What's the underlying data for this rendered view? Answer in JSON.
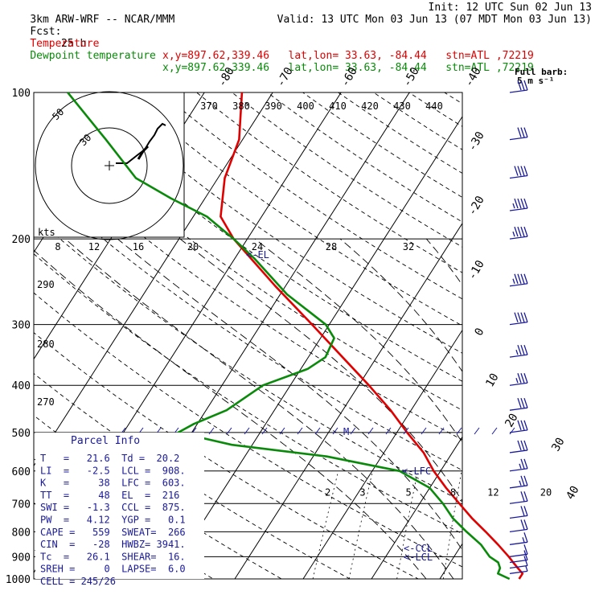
{
  "header": {
    "model": "3km ARW-WRF -- NCAR/MMM",
    "init": "Init: 12 UTC Sun 02 Jun 13",
    "fcst_label": "Fcst:",
    "fcst_value": "25 h",
    "valid": "Valid: 13 UTC Mon 03 Jun 13 (07 MDT Mon 03 Jun 13)",
    "temp_label": "Temperature",
    "temp_info": "x,y=897.62,339.46   lat,lon= 33.63, -84.44   stn=ATL ,72219",
    "dew_label": "Dewpoint temperature",
    "dew_info": "x,y=897.62,339.46   lat,lon= 33.63, -84.44   stn=ATL ,72219"
  },
  "wind_legend": {
    "line1": "Full barb:",
    "line2": "5 m s⁻¹"
  },
  "parcel": {
    "title": "Parcel Info",
    "lines": [
      "T   =   21.6  Td =  20.2",
      "LI  =   -2.5  LCL =  908.",
      "K   =     38  LFC =  603.",
      "TT  =     48  EL  =  216",
      "SWI =   -1.3  CCL =  875.",
      "PW  =   4.12  YGP =   0.1",
      "CAPE =   559  SWEAT=  266",
      "CIN  =   -28  HWBZ= 3941.",
      "Tc  =   26.1  SHEAR=  16.",
      "SREH =     0  LAPSE=  6.0",
      "CELL = 245/26"
    ]
  },
  "hodograph": {
    "unit_label": "kts",
    "ring_labels": [
      "50",
      "30"
    ]
  },
  "annotations": {
    "el": "<-EL",
    "lfc": "<-LFC",
    "ccl": "<-CCL",
    "lcl": "<-LCL",
    "m": "M"
  },
  "colors": {
    "temperature": "#e00000",
    "dewpoint": "#0a8a0a",
    "wind": "#1a1a9a",
    "grid": "#000000"
  },
  "chart_data": {
    "type": "line",
    "chart_kind": "skew-T log-P",
    "y_axis": "pressure (hPa)",
    "y_scale": "log",
    "ylim": [
      1000,
      100
    ],
    "pressure_levels": [
      100,
      200,
      300,
      400,
      500,
      600,
      700,
      800,
      900,
      1000
    ],
    "isotherm_labels": [
      {
        "t": -80,
        "label": "-80"
      },
      {
        "t": -70,
        "label": "-70"
      },
      {
        "t": -60,
        "label": "-60"
      },
      {
        "t": -50,
        "label": "-50"
      },
      {
        "t": -40,
        "label": "-40"
      },
      {
        "t": -30,
        "label": "-30"
      },
      {
        "t": -20,
        "label": "-20"
      },
      {
        "t": -10,
        "label": "-10"
      },
      {
        "t": 0,
        "label": "0"
      },
      {
        "t": 10,
        "label": "10"
      },
      {
        "t": 20,
        "label": "20"
      },
      {
        "t": 30,
        "label": "30"
      },
      {
        "t": 40,
        "label": "40"
      }
    ],
    "theta_labels": [
      "370",
      "380",
      "390",
      "400",
      "410",
      "420",
      "430",
      "440"
    ],
    "theta_left_labels": [
      "290",
      "280",
      "270"
    ],
    "hodo_speed_labels": [
      "8",
      "12",
      "16",
      "20",
      "24",
      "28",
      "32"
    ],
    "mixing_ratio_labels": [
      "2",
      "3",
      "5",
      "8",
      "12",
      "20"
    ],
    "series": [
      {
        "name": "Temperature",
        "points": [
          {
            "p": 1000,
            "t": 21.6
          },
          {
            "p": 975,
            "t": 21.6
          },
          {
            "p": 950,
            "t": 20.4
          },
          {
            "p": 925,
            "t": 19.2
          },
          {
            "p": 900,
            "t": 18.0
          },
          {
            "p": 850,
            "t": 15.3
          },
          {
            "p": 800,
            "t": 12.3
          },
          {
            "p": 750,
            "t": 9.0
          },
          {
            "p": 700,
            "t": 5.8
          },
          {
            "p": 650,
            "t": 2.4
          },
          {
            "p": 600,
            "t": -1.0
          },
          {
            "p": 550,
            "t": -4.2
          },
          {
            "p": 500,
            "t": -8.5
          },
          {
            "p": 450,
            "t": -13.0
          },
          {
            "p": 400,
            "t": -18.5
          },
          {
            "p": 350,
            "t": -25.0
          },
          {
            "p": 300,
            "t": -32.5
          },
          {
            "p": 250,
            "t": -41.5
          },
          {
            "p": 200,
            "t": -52.0
          },
          {
            "p": 180,
            "t": -56.0
          },
          {
            "p": 150,
            "t": -59.0
          },
          {
            "p": 125,
            "t": -60.5
          },
          {
            "p": 100,
            "t": -64.5
          }
        ]
      },
      {
        "name": "Dewpoint temperature",
        "points": [
          {
            "p": 1000,
            "t": 20.2
          },
          {
            "p": 975,
            "t": 18.0
          },
          {
            "p": 950,
            "t": 17.8
          },
          {
            "p": 925,
            "t": 17.0
          },
          {
            "p": 900,
            "t": 15.2
          },
          {
            "p": 850,
            "t": 12.8
          },
          {
            "p": 800,
            "t": 9.5
          },
          {
            "p": 750,
            "t": 6.2
          },
          {
            "p": 700,
            "t": 3.4
          },
          {
            "p": 650,
            "t": 0.0
          },
          {
            "p": 600,
            "t": -6.0
          },
          {
            "p": 560,
            "t": -18.0
          },
          {
            "p": 530,
            "t": -33.0
          },
          {
            "p": 500,
            "t": -42.0
          },
          {
            "p": 480,
            "t": -40.5
          },
          {
            "p": 450,
            "t": -37.0
          },
          {
            "p": 400,
            "t": -34.0
          },
          {
            "p": 370,
            "t": -29.0
          },
          {
            "p": 350,
            "t": -27.5
          },
          {
            "p": 320,
            "t": -28.0
          },
          {
            "p": 300,
            "t": -30.5
          },
          {
            "p": 260,
            "t": -39.0
          },
          {
            "p": 220,
            "t": -47.0
          },
          {
            "p": 200,
            "t": -52.0
          },
          {
            "p": 180,
            "t": -58.0
          },
          {
            "p": 165,
            "t": -65.0
          },
          {
            "p": 150,
            "t": -72.0
          },
          {
            "p": 125,
            "t": -80.0
          },
          {
            "p": 100,
            "t": -90.0
          }
        ]
      }
    ],
    "wind_barbs": [
      {
        "p": 975,
        "dir": 220,
        "spd_kt": 8
      },
      {
        "p": 950,
        "dir": 225,
        "spd_kt": 10
      },
      {
        "p": 925,
        "dir": 225,
        "spd_kt": 12
      },
      {
        "p": 900,
        "dir": 230,
        "spd_kt": 14
      },
      {
        "p": 850,
        "dir": 240,
        "spd_kt": 18
      },
      {
        "p": 800,
        "dir": 245,
        "spd_kt": 20
      },
      {
        "p": 750,
        "dir": 250,
        "spd_kt": 22
      },
      {
        "p": 700,
        "dir": 250,
        "spd_kt": 24
      },
      {
        "p": 650,
        "dir": 255,
        "spd_kt": 26
      },
      {
        "p": 600,
        "dir": 255,
        "spd_kt": 28
      },
      {
        "p": 550,
        "dir": 260,
        "spd_kt": 30
      },
      {
        "p": 500,
        "dir": 260,
        "spd_kt": 32
      },
      {
        "p": 450,
        "dir": 255,
        "spd_kt": 34
      },
      {
        "p": 400,
        "dir": 255,
        "spd_kt": 36
      },
      {
        "p": 350,
        "dir": 250,
        "spd_kt": 38
      },
      {
        "p": 300,
        "dir": 250,
        "spd_kt": 42
      },
      {
        "p": 250,
        "dir": 245,
        "spd_kt": 46
      },
      {
        "p": 200,
        "dir": 245,
        "spd_kt": 48
      },
      {
        "p": 175,
        "dir": 240,
        "spd_kt": 46
      },
      {
        "p": 150,
        "dir": 240,
        "spd_kt": 40
      },
      {
        "p": 125,
        "dir": 245,
        "spd_kt": 34
      },
      {
        "p": 100,
        "dir": 250,
        "spd_kt": 30
      }
    ],
    "legend_placement": "top-left"
  }
}
